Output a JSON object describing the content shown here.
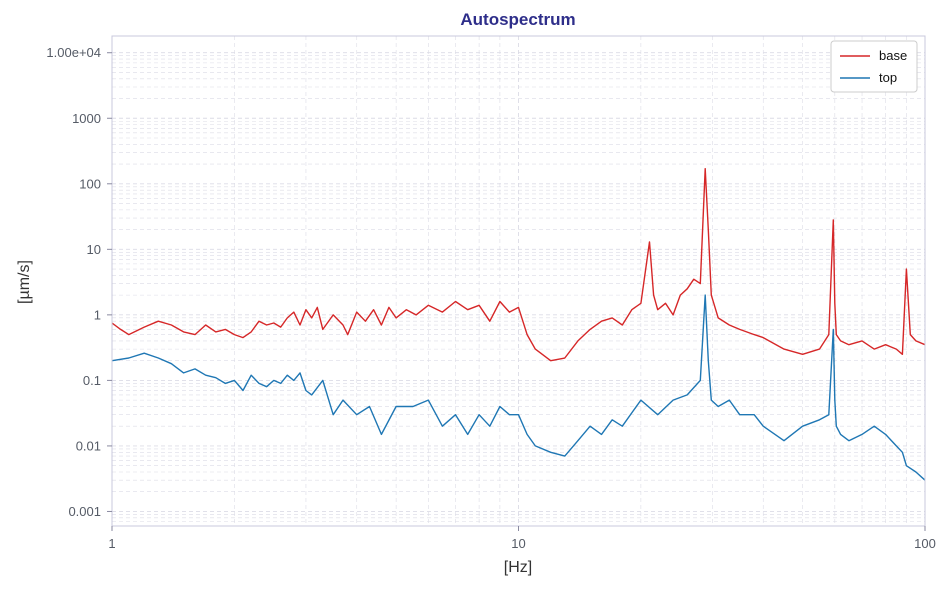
{
  "colors": {
    "title": "#2e2e8a",
    "base": "#d62728",
    "top": "#1f77b4",
    "frame": "#c8c8dc",
    "grid": "#dcdce6"
  },
  "chart_data": {
    "type": "line",
    "title": "Autospectrum",
    "xlabel": "[Hz]",
    "ylabel": "[µm/s]",
    "xscale": "log",
    "yscale": "log",
    "xlim": [
      1,
      100
    ],
    "ylim": [
      0.0006,
      18000
    ],
    "grid": true,
    "legend_position": "top-right",
    "xticks": [
      {
        "value": 1,
        "label": "1"
      },
      {
        "value": 10,
        "label": "10"
      },
      {
        "value": 100,
        "label": "100"
      }
    ],
    "yticks": [
      {
        "value": 0.001,
        "label": "0.001"
      },
      {
        "value": 0.01,
        "label": "0.01"
      },
      {
        "value": 0.1,
        "label": "0.1"
      },
      {
        "value": 1,
        "label": "1"
      },
      {
        "value": 10,
        "label": "10"
      },
      {
        "value": 100,
        "label": "100"
      },
      {
        "value": 1000,
        "label": "1000"
      },
      {
        "value": 10000,
        "label": "1.00e+04"
      }
    ],
    "series": [
      {
        "name": "base",
        "color": "#d62728",
        "x": [
          1,
          1.05,
          1.1,
          1.2,
          1.3,
          1.4,
          1.5,
          1.6,
          1.7,
          1.8,
          1.9,
          2.0,
          2.1,
          2.2,
          2.3,
          2.4,
          2.5,
          2.6,
          2.7,
          2.8,
          2.9,
          3.0,
          3.1,
          3.2,
          3.3,
          3.5,
          3.7,
          3.8,
          4.0,
          4.2,
          4.4,
          4.6,
          4.8,
          5.0,
          5.3,
          5.6,
          6.0,
          6.5,
          7.0,
          7.5,
          8.0,
          8.5,
          9.0,
          9.5,
          10.0,
          10.5,
          11.0,
          12.0,
          13.0,
          14.0,
          15.0,
          16.0,
          17.0,
          18.0,
          19.0,
          20.0,
          21.0,
          21.5,
          22.0,
          23.0,
          24.0,
          25.0,
          26.0,
          27.0,
          28.0,
          28.8,
          29.3,
          29.8,
          31.0,
          33.0,
          35.0,
          38.0,
          40.0,
          45.0,
          50.0,
          55.0,
          58.0,
          59.5,
          60.0,
          60.5,
          62.0,
          65.0,
          70.0,
          75.0,
          80.0,
          85.0,
          88.0,
          90.0,
          92.0,
          95.0,
          100.0
        ],
        "y": [
          0.75,
          0.6,
          0.5,
          0.65,
          0.8,
          0.7,
          0.55,
          0.5,
          0.7,
          0.55,
          0.6,
          0.5,
          0.45,
          0.55,
          0.8,
          0.7,
          0.75,
          0.65,
          0.9,
          1.1,
          0.7,
          1.2,
          0.9,
          1.3,
          0.6,
          1.0,
          0.7,
          0.5,
          1.1,
          0.8,
          1.2,
          0.7,
          1.3,
          0.9,
          1.2,
          1.0,
          1.4,
          1.1,
          1.6,
          1.2,
          1.4,
          0.8,
          1.6,
          1.1,
          1.3,
          0.5,
          0.3,
          0.2,
          0.22,
          0.4,
          0.6,
          0.8,
          0.9,
          0.7,
          1.2,
          1.5,
          13.0,
          2.0,
          1.2,
          1.5,
          1.0,
          2.0,
          2.5,
          3.5,
          3.0,
          170.0,
          20.0,
          2.0,
          0.9,
          0.7,
          0.6,
          0.5,
          0.45,
          0.3,
          0.25,
          0.3,
          0.5,
          28.0,
          1.5,
          0.5,
          0.4,
          0.35,
          0.4,
          0.3,
          0.35,
          0.3,
          0.25,
          5.0,
          0.5,
          0.4,
          0.35
        ]
      },
      {
        "name": "top",
        "color": "#1f77b4",
        "x": [
          1,
          1.1,
          1.2,
          1.3,
          1.4,
          1.5,
          1.6,
          1.7,
          1.8,
          1.9,
          2.0,
          2.1,
          2.2,
          2.3,
          2.4,
          2.5,
          2.6,
          2.7,
          2.8,
          2.9,
          3.0,
          3.1,
          3.3,
          3.5,
          3.7,
          4.0,
          4.3,
          4.6,
          5.0,
          5.5,
          6.0,
          6.5,
          7.0,
          7.5,
          8.0,
          8.5,
          9.0,
          9.5,
          10.0,
          10.5,
          11.0,
          12.0,
          13.0,
          14.0,
          15.0,
          16.0,
          17.0,
          18.0,
          20.0,
          22.0,
          24.0,
          26.0,
          28.0,
          28.8,
          29.3,
          29.8,
          31.0,
          33.0,
          35.0,
          38.0,
          40.0,
          45.0,
          50.0,
          55.0,
          58.0,
          59.5,
          60.0,
          60.5,
          62.0,
          65.0,
          70.0,
          75.0,
          80.0,
          85.0,
          88.0,
          90.0,
          95.0,
          100.0
        ],
        "y": [
          0.2,
          0.22,
          0.26,
          0.22,
          0.18,
          0.13,
          0.15,
          0.12,
          0.11,
          0.09,
          0.1,
          0.07,
          0.12,
          0.09,
          0.08,
          0.1,
          0.09,
          0.12,
          0.1,
          0.13,
          0.07,
          0.06,
          0.1,
          0.03,
          0.05,
          0.03,
          0.04,
          0.015,
          0.04,
          0.04,
          0.05,
          0.02,
          0.03,
          0.015,
          0.03,
          0.02,
          0.04,
          0.03,
          0.03,
          0.015,
          0.01,
          0.008,
          0.007,
          0.012,
          0.02,
          0.015,
          0.025,
          0.02,
          0.05,
          0.03,
          0.05,
          0.06,
          0.1,
          2.0,
          0.2,
          0.05,
          0.04,
          0.05,
          0.03,
          0.03,
          0.02,
          0.012,
          0.02,
          0.025,
          0.03,
          0.6,
          0.05,
          0.02,
          0.015,
          0.012,
          0.015,
          0.02,
          0.015,
          0.01,
          0.008,
          0.005,
          0.004,
          0.003
        ]
      }
    ]
  }
}
